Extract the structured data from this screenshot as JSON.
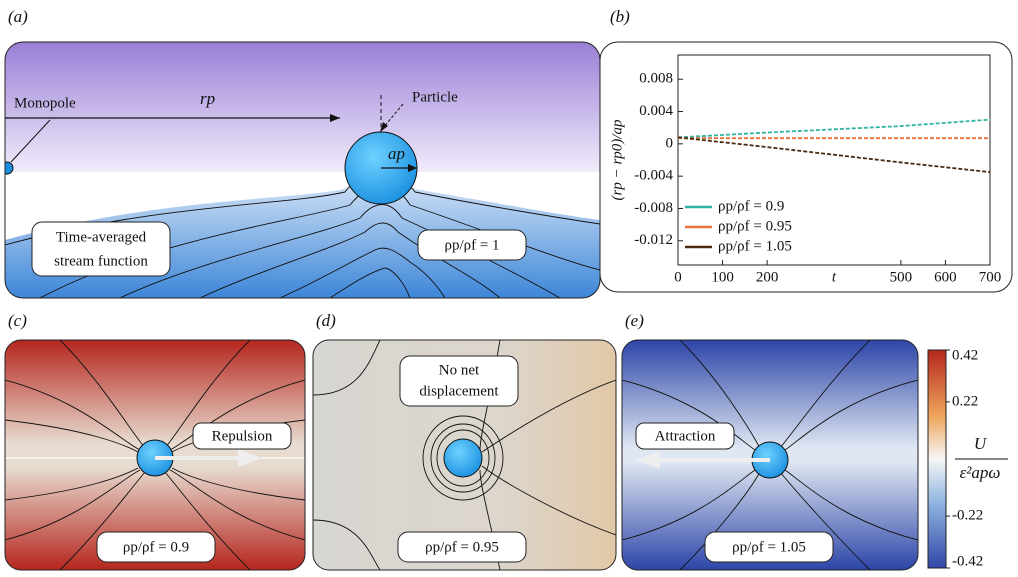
{
  "panels": {
    "a": {
      "label": "(a)",
      "rp": "rp",
      "particle": "Particle",
      "monopole": "Monopole",
      "ap": "ap",
      "caption_line1": "Time-averaged",
      "caption_line2": "stream function",
      "ratio": "ρp/ρf = 1"
    },
    "b": {
      "label": "(b)"
    },
    "c": {
      "label": "(c)",
      "arrow_label": "Repulsion",
      "ratio": "ρp/ρf = 0.9"
    },
    "d": {
      "label": "(d)",
      "caption_line1": "No net",
      "caption_line2": "displacement",
      "ratio": "ρp/ρf = 0.95"
    },
    "e": {
      "label": "(e)",
      "arrow_label": "Attraction",
      "ratio": "ρp/ρf = 1.05"
    }
  },
  "colorbar": {
    "lim": [
      -0.42,
      0.42
    ],
    "ticks": [
      0.42,
      0.22,
      -0.22,
      -0.42
    ],
    "label_top": "U",
    "label_bottom": "ε²apω"
  },
  "chart_data": {
    "type": "line",
    "xlabel": "t",
    "ylabel": "(rp − rp0)/ap",
    "x": [
      0,
      100,
      200,
      500,
      600,
      700
    ],
    "series": [
      {
        "name": "ρp/ρf = 0.9",
        "color": "#2fb3a0",
        "values": [
          0.0008,
          0.0011,
          0.0014,
          0.0022,
          0.0026,
          0.003
        ]
      },
      {
        "name": "ρp/ρf = 0.95",
        "color": "#e8703a",
        "values": [
          0.0007,
          0.0007,
          0.0007,
          0.0007,
          0.0007,
          0.0007
        ]
      },
      {
        "name": "ρp/ρf = 1.05",
        "color": "#4a2a10",
        "values": [
          0.0008,
          0.0002,
          -0.0004,
          -0.0023,
          -0.0029,
          -0.0035
        ]
      }
    ],
    "xlim": [
      0,
      700
    ],
    "xticks": [
      0,
      100,
      200,
      500,
      600,
      700
    ],
    "ylim": [
      -0.015,
      0.011
    ],
    "yticks": [
      0.008,
      0.004,
      0,
      -0.004,
      -0.008,
      -0.012
    ],
    "legend": "lower left"
  }
}
